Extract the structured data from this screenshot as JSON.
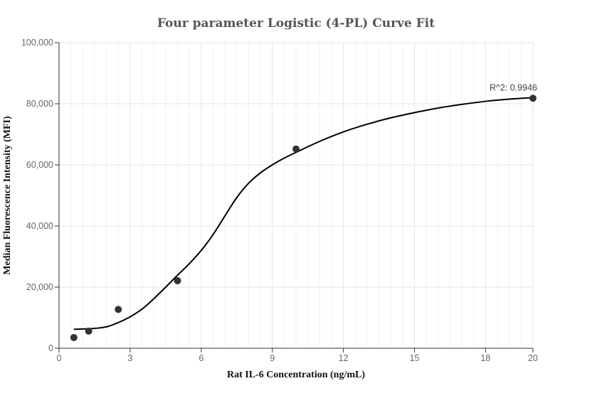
{
  "chart_data": {
    "type": "scatter",
    "title": "Four parameter Logistic (4-PL) Curve Fit",
    "xlabel": "Rat IL-6 Concentration (ng/mL)",
    "ylabel": "Median Fluorescence Intensity (MFI)",
    "xlim": [
      0,
      20
    ],
    "ylim": [
      0,
      100000
    ],
    "x_ticks": [
      0,
      3,
      6,
      9,
      12,
      15,
      18,
      20
    ],
    "x_tick_labels": [
      "0",
      "3",
      "6",
      "9",
      "12",
      "15",
      "18",
      "20"
    ],
    "y_ticks": [
      0,
      20000,
      40000,
      60000,
      80000,
      100000
    ],
    "y_tick_labels": [
      "0",
      "20,000",
      "40,000",
      "60,000",
      "80,000",
      "100,000"
    ],
    "grid": true,
    "series": [
      {
        "values": [
          {
            "x": 0.625,
            "y": 3500
          },
          {
            "x": 1.25,
            "y": 5600
          },
          {
            "x": 2.5,
            "y": 12700
          },
          {
            "x": 5,
            "y": 22100
          },
          {
            "x": 10,
            "y": 65200
          },
          {
            "x": 20,
            "y": 81800
          }
        ]
      }
    ],
    "fit_curve": [
      {
        "x": 0.625,
        "y": 6200
      },
      {
        "x": 1.0,
        "y": 6300
      },
      {
        "x": 1.5,
        "y": 6500
      },
      {
        "x": 2.0,
        "y": 7000
      },
      {
        "x": 2.5,
        "y": 8400
      },
      {
        "x": 3.0,
        "y": 10300
      },
      {
        "x": 3.5,
        "y": 12800
      },
      {
        "x": 4.0,
        "y": 16200
      },
      {
        "x": 4.5,
        "y": 20000
      },
      {
        "x": 5.0,
        "y": 23900
      },
      {
        "x": 5.5,
        "y": 27700
      },
      {
        "x": 6.0,
        "y": 32000
      },
      {
        "x": 6.5,
        "y": 37200
      },
      {
        "x": 7.0,
        "y": 43300
      },
      {
        "x": 7.5,
        "y": 49300
      },
      {
        "x": 8.0,
        "y": 54000
      },
      {
        "x": 8.5,
        "y": 57400
      },
      {
        "x": 9.0,
        "y": 60000
      },
      {
        "x": 9.5,
        "y": 62200
      },
      {
        "x": 10.0,
        "y": 64100
      },
      {
        "x": 11.0,
        "y": 67700
      },
      {
        "x": 12.0,
        "y": 70800
      },
      {
        "x": 13.0,
        "y": 73300
      },
      {
        "x": 14.0,
        "y": 75400
      },
      {
        "x": 15.0,
        "y": 77100
      },
      {
        "x": 16.0,
        "y": 78600
      },
      {
        "x": 17.0,
        "y": 79800
      },
      {
        "x": 18.0,
        "y": 80800
      },
      {
        "x": 19.0,
        "y": 81500
      },
      {
        "x": 20.0,
        "y": 82000
      }
    ],
    "annotations": [
      {
        "text": "R^2: 0.9946",
        "x": 20,
        "y": 81800
      }
    ]
  }
}
